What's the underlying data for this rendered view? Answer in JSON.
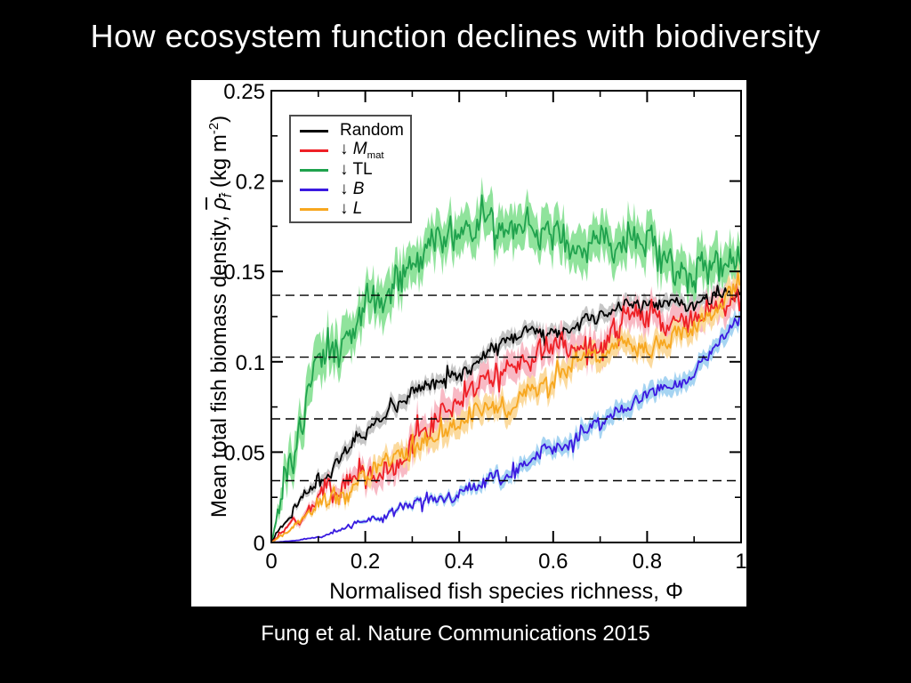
{
  "slide": {
    "title": "How ecosystem function declines with biodiversity",
    "citation": "Fung et al. Nature Communications 2015",
    "background_color": "#000000",
    "title_color": "#ffffff",
    "panel_color": "#ffffff"
  },
  "chart_data": {
    "type": "line",
    "title": "",
    "xlabel": "Normalised fish species richness, Φ",
    "ylabel_parts": {
      "main": "Mean total fish biomass density, ",
      "rho": "ρ",
      "rho_sub": "f",
      "units_pre": " (kg m",
      "units_sup": "-2",
      "units_post": ")"
    },
    "xlim": [
      0,
      1
    ],
    "ylim": [
      0,
      0.25
    ],
    "x_tick_values": [
      0,
      0.2,
      0.4,
      0.6,
      0.8,
      1
    ],
    "x_tick_labels": [
      "0",
      "0.2",
      "0.4",
      "0.6",
      "0.8",
      "1"
    ],
    "x_minor_step": 0.1,
    "y_tick_values": [
      0,
      0.05,
      0.1,
      0.15,
      0.2,
      0.25
    ],
    "y_tick_labels": [
      "0",
      "0.05",
      "0.1",
      "0.15",
      "0.2",
      "0.25"
    ],
    "y_minor_step": 0.025,
    "dashed_hlines": [
      0.0342,
      0.0684,
      0.1026,
      0.1368
    ],
    "grid": false,
    "legend_position": "top-left",
    "axis_color": "#000000",
    "x": [
      0,
      0.05,
      0.1,
      0.15,
      0.2,
      0.25,
      0.3,
      0.35,
      0.4,
      0.45,
      0.5,
      0.55,
      0.6,
      0.65,
      0.7,
      0.75,
      0.8,
      0.85,
      0.9,
      0.95,
      1
    ],
    "series": [
      {
        "name": "Random",
        "legend": {
          "prefix": "",
          "main": "Random",
          "sub": "",
          "italic": false
        },
        "color": "#000000",
        "band_color": "#c6c6c6",
        "band_halfwidth": 0.004,
        "noise_amp": 0.0028,
        "values": [
          0,
          0.02,
          0.036,
          0.05,
          0.061,
          0.072,
          0.081,
          0.09,
          0.097,
          0.104,
          0.11,
          0.115,
          0.12,
          0.124,
          0.127,
          0.13,
          0.133,
          0.135,
          0.136,
          0.138,
          0.14
        ]
      },
      {
        "name": "decrease-Mmat",
        "legend": {
          "prefix": "↓ ",
          "main": "M",
          "sub": "mat",
          "italic": true
        },
        "color": "#ee2026",
        "band_color": "#f8b9c4",
        "band_halfwidth": 0.0075,
        "noise_amp": 0.005,
        "values": [
          0,
          0.01,
          0.021,
          0.03,
          0.04,
          0.05,
          0.06,
          0.07,
          0.079,
          0.087,
          0.094,
          0.1,
          0.104,
          0.108,
          0.112,
          0.116,
          0.12,
          0.124,
          0.128,
          0.132,
          0.135
        ]
      },
      {
        "name": "decrease-TL",
        "legend": {
          "prefix": "↓ ",
          "main": "TL",
          "sub": "",
          "italic": false
        },
        "color": "#1fa24d",
        "band_color": "#90e39c",
        "band_halfwidth": 0.011,
        "noise_amp": 0.0075,
        "values": [
          0,
          0.06,
          0.095,
          0.115,
          0.132,
          0.141,
          0.152,
          0.161,
          0.168,
          0.172,
          0.17,
          0.168,
          0.165,
          0.162,
          0.16,
          0.157,
          0.153,
          0.15,
          0.148,
          0.146,
          0.148
        ]
      },
      {
        "name": "decrease-B",
        "legend": {
          "prefix": "↓ ",
          "main": "B",
          "sub": "",
          "italic": true
        },
        "color": "#3a1ae0",
        "band_color": "#a6d4f2",
        "band_halfwidth": 0.0045,
        "noise_amp": 0.0026,
        "values": [
          0,
          0.001,
          0.003,
          0.007,
          0.011,
          0.015,
          0.019,
          0.024,
          0.028,
          0.033,
          0.038,
          0.044,
          0.05,
          0.057,
          0.064,
          0.071,
          0.079,
          0.087,
          0.096,
          0.107,
          0.124
        ]
      },
      {
        "name": "decrease-L",
        "legend": {
          "prefix": "↓ ",
          "main": "L",
          "sub": "",
          "italic": true
        },
        "color": "#f7a71f",
        "band_color": "#fbda9e",
        "band_halfwidth": 0.006,
        "noise_amp": 0.004,
        "values": [
          0,
          0.008,
          0.017,
          0.026,
          0.035,
          0.043,
          0.051,
          0.059,
          0.066,
          0.073,
          0.08,
          0.086,
          0.091,
          0.095,
          0.099,
          0.103,
          0.107,
          0.112,
          0.119,
          0.13,
          0.15
        ]
      }
    ],
    "draw_order": [
      2,
      0,
      1,
      4,
      3
    ]
  }
}
